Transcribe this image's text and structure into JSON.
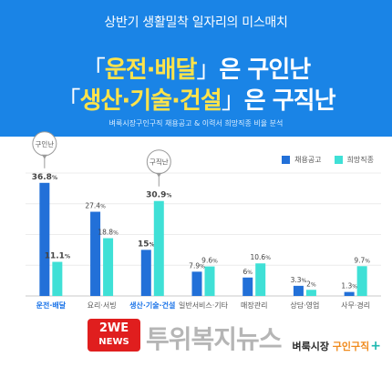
{
  "header": {
    "subtitle": "상반기 생활밀착 일자리의 미스매치",
    "line1_bracket_open": "「",
    "line1_highlight": "운전·배달",
    "line1_bracket_close": "」",
    "line1_suffix": "은 구인난",
    "line2_bracket_open": "「",
    "line2_highlight": "생산·기술·건설",
    "line2_bracket_close": "」",
    "line2_suffix": "은 구직난",
    "note": "벼룩시장구인구직 채용공고 & 이력서 희망직종 비율 분석"
  },
  "legend": {
    "series1": "채용공고",
    "series2": "희망직종"
  },
  "colors": {
    "header_bg": "#1a84e6",
    "highlight": "#ffe34a",
    "series1": "#2270d8",
    "series2": "#3fe0d6",
    "callout": "#9a9a9a",
    "category_highlight": "#1a73e8"
  },
  "chart_data": {
    "type": "bar",
    "categories": [
      "운전·배달",
      "요리·서빙",
      "생산·기술·건설",
      "일반서비스·기타",
      "매장관리",
      "상담·영업",
      "사무·경리"
    ],
    "series": [
      {
        "name": "채용공고",
        "values": [
          36.8,
          27.4,
          15,
          7.9,
          6,
          3.3,
          1.3
        ]
      },
      {
        "name": "희망직종",
        "values": [
          11.1,
          18.8,
          30.9,
          9.6,
          10.6,
          2,
          9.7
        ]
      }
    ],
    "value_labels_series1": [
      "36.8",
      "27.4",
      "15",
      "7.9",
      "6",
      "3.3",
      "1.3"
    ],
    "value_labels_series2": [
      "11.1",
      "18.8",
      "30.9",
      "9.6",
      "10.6",
      "2",
      "9.7"
    ],
    "unit": "%",
    "highlighted_categories": [
      0,
      2
    ],
    "callouts": [
      {
        "label": "구인난",
        "category_index": 0,
        "series_index": 0
      },
      {
        "label": "구직난",
        "category_index": 2,
        "series_index": 1
      }
    ],
    "ylim": [
      0,
      40
    ],
    "grid": true,
    "legend_position": "top-right"
  },
  "footer": {
    "logo_top": "2WE",
    "logo_bottom": "NEWS",
    "watermark": "투위복지뉴스",
    "brand_main": "벼룩시장 ",
    "brand_accent": "구인구직",
    "brand_plus": "+"
  }
}
